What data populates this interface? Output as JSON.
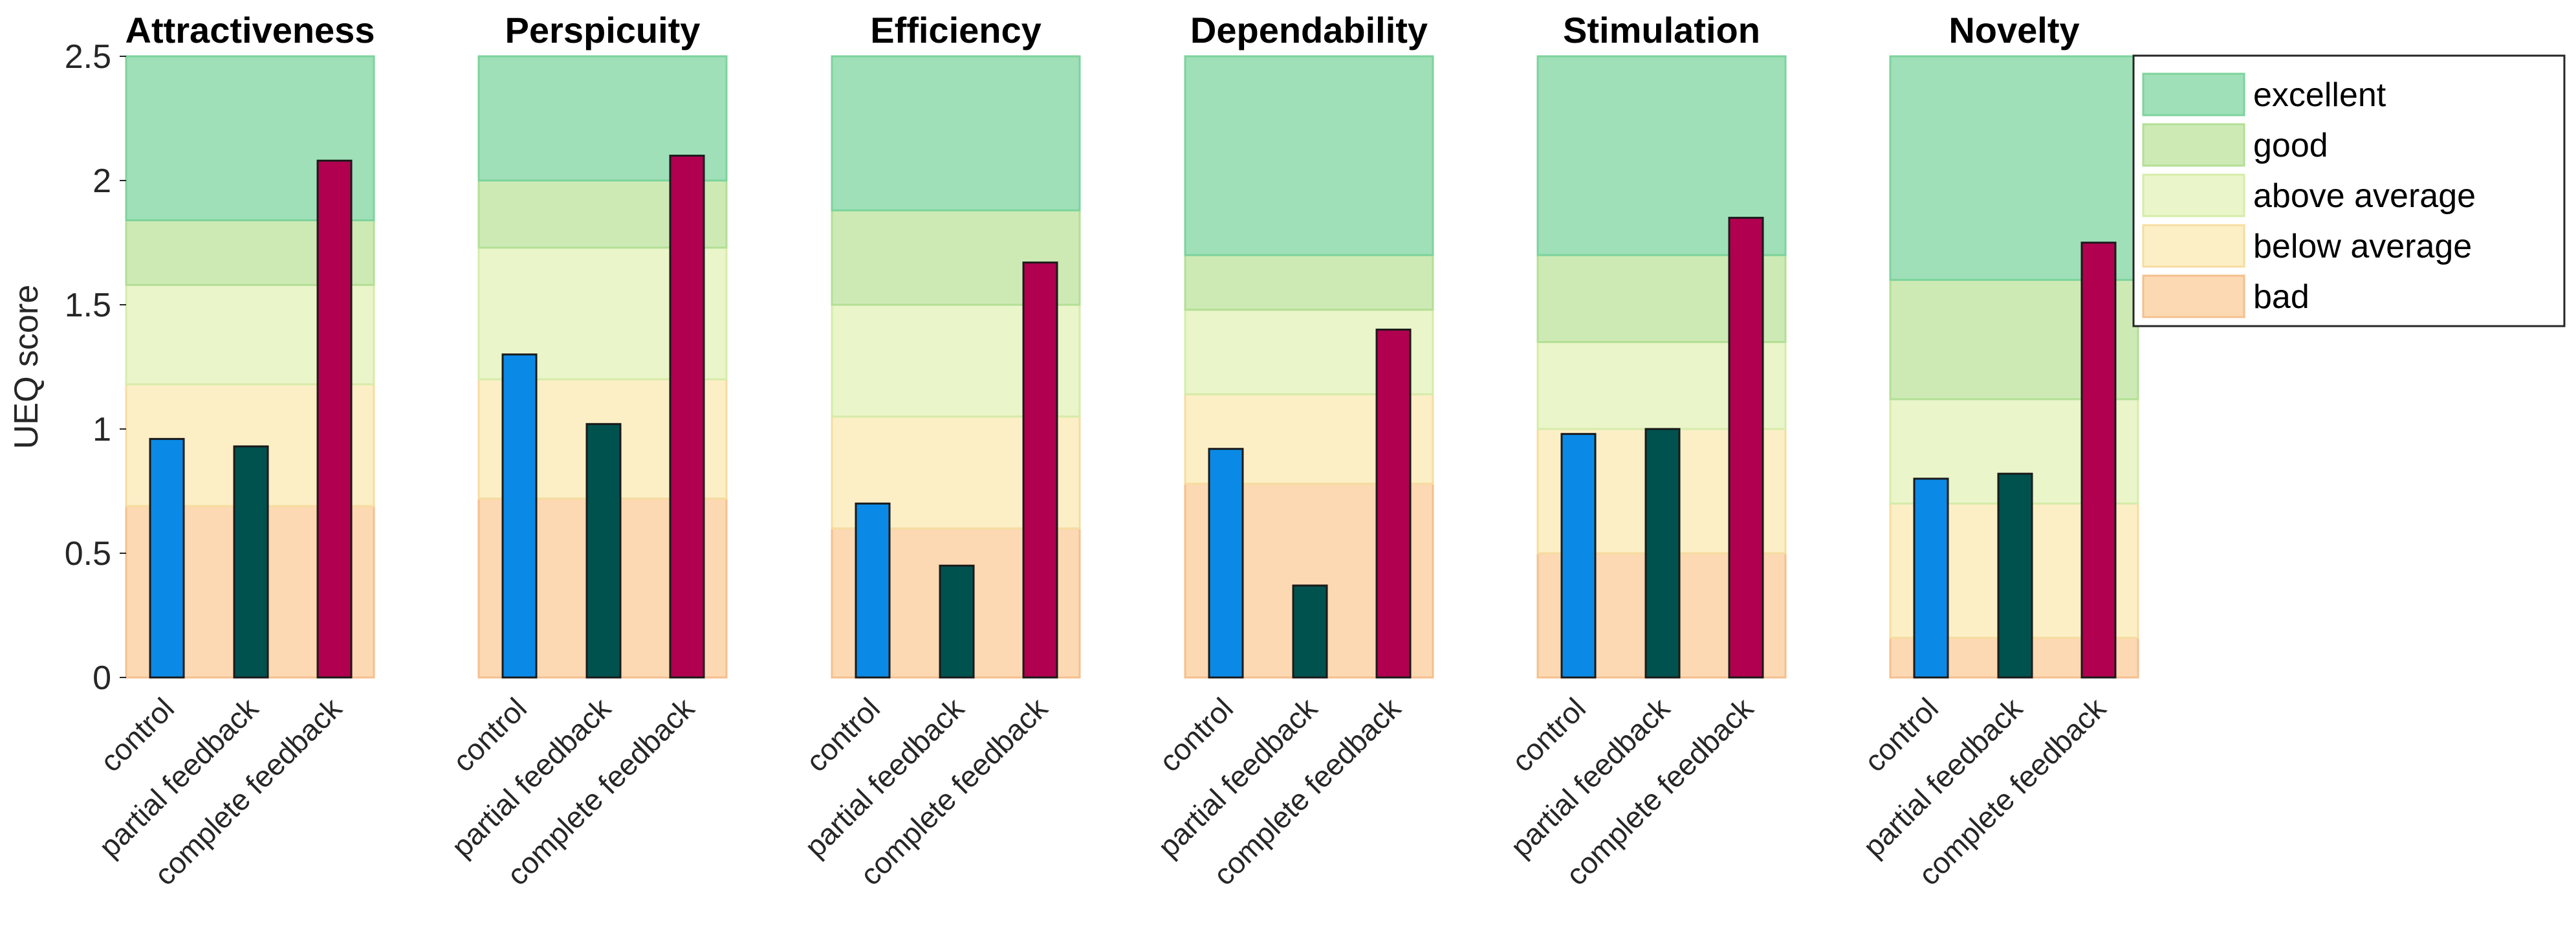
{
  "chart_data": {
    "type": "bar",
    "ylabel": "UEQ score",
    "ylim": [
      0,
      2.5
    ],
    "yticks": [
      "0",
      "0.5",
      "1",
      "1.5",
      "2",
      "2.5"
    ],
    "categories": [
      "control",
      "partial feedback",
      "complete feedback"
    ],
    "bar_colors": [
      "#0a8ae6",
      "#00524f",
      "#b1004f"
    ],
    "band_colors": {
      "excellent": "#9fe0b8",
      "good": "#cdeab5",
      "above average": "#eaf5c9",
      "below average": "#fcefc6",
      "bad": "#fcd9b2"
    },
    "legend": [
      "excellent",
      "good",
      "above average",
      "below average",
      "bad"
    ],
    "panels": [
      {
        "title": "Attractiveness",
        "values": [
          0.96,
          0.93,
          2.08
        ],
        "thresholds": {
          "bad": 0.69,
          "below average": 1.18,
          "above average": 1.58,
          "good": 1.84
        }
      },
      {
        "title": "Perspicuity",
        "values": [
          1.3,
          1.02,
          2.1
        ],
        "thresholds": {
          "bad": 0.72,
          "below average": 1.2,
          "above average": 1.73,
          "good": 2.0
        }
      },
      {
        "title": "Efficiency",
        "values": [
          0.7,
          0.45,
          1.67
        ],
        "thresholds": {
          "bad": 0.6,
          "below average": 1.05,
          "above average": 1.5,
          "good": 1.88
        }
      },
      {
        "title": "Dependability",
        "values": [
          0.92,
          0.37,
          1.4
        ],
        "thresholds": {
          "bad": 0.78,
          "below average": 1.14,
          "above average": 1.48,
          "good": 1.7
        }
      },
      {
        "title": "Stimulation",
        "values": [
          0.98,
          1.0,
          1.85
        ],
        "thresholds": {
          "bad": 0.5,
          "below average": 1.0,
          "above average": 1.35,
          "good": 1.7
        }
      },
      {
        "title": "Novelty",
        "values": [
          0.8,
          0.82,
          1.75
        ],
        "thresholds": {
          "bad": 0.16,
          "below average": 0.7,
          "above average": 1.12,
          "good": 1.6
        }
      }
    ]
  }
}
